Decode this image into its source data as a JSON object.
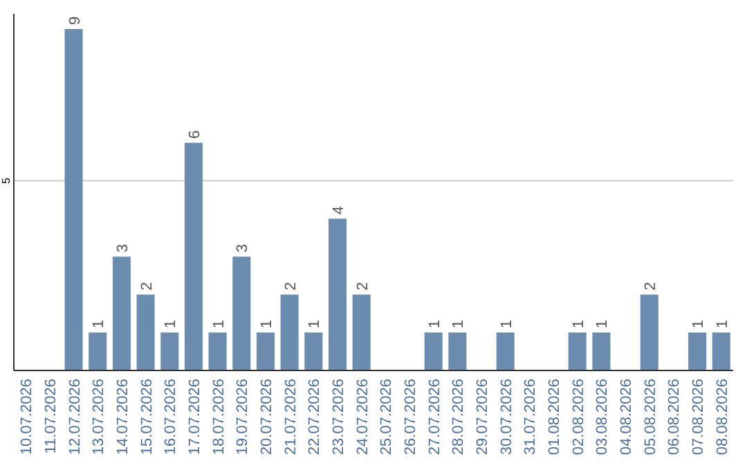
{
  "chart_data": {
    "type": "bar",
    "categories": [
      "10.07.2026",
      "11.07.2026",
      "12.07.2026",
      "13.07.2026",
      "14.07.2026",
      "15.07.2026",
      "16.07.2026",
      "17.07.2026",
      "18.07.2026",
      "19.07.2026",
      "20.07.2026",
      "21.07.2026",
      "22.07.2026",
      "23.07.2026",
      "24.07.2026",
      "25.07.2026",
      "26.07.2026",
      "27.07.2026",
      "28.07.2026",
      "29.07.2026",
      "30.07.2026",
      "31.07.2026",
      "01.08.2026",
      "02.08.2026",
      "03.08.2026",
      "04.08.2026",
      "05.08.2026",
      "06.08.2026",
      "07.08.2026",
      "08.08.2026"
    ],
    "values": [
      0,
      0,
      9,
      1,
      3,
      2,
      1,
      6,
      1,
      3,
      1,
      2,
      1,
      4,
      2,
      0,
      0,
      1,
      1,
      0,
      1,
      0,
      0,
      1,
      1,
      0,
      2,
      0,
      1,
      1
    ],
    "value_labels": [
      null,
      null,
      "9",
      "1",
      "3",
      "2",
      "1",
      "6",
      "1",
      "3",
      "1",
      "2",
      "1",
      "4",
      "2",
      null,
      null,
      "1",
      "1",
      null,
      "1",
      null,
      null,
      "1",
      "1",
      null,
      "2",
      null,
      "1",
      "1"
    ],
    "color": "#6b8cae",
    "ylim": [
      0,
      9.4
    ],
    "yticks": [
      5
    ],
    "grid": "y"
  }
}
